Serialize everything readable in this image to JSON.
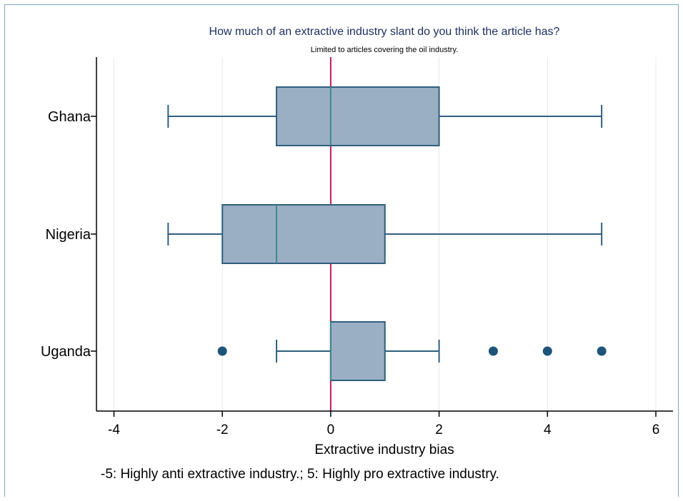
{
  "chart_data": {
    "type": "boxplot",
    "orientation": "horizontal",
    "title": "How much of an extractive industry slant do you think the article has?",
    "subtitle": "Limited to articles covering the oil industry.",
    "xlabel": "Extractive industry bias",
    "note": "-5: Highly anti extractive industry.; 5: Highly pro extractive industry.",
    "xlim": [
      -4.3,
      6.3
    ],
    "xticks": [
      -4,
      -2,
      0,
      2,
      4,
      6
    ],
    "xtick_labels": [
      "-4",
      "-2",
      "0",
      "2",
      "4",
      "6"
    ],
    "reference_line": 0,
    "grid": true,
    "colors": {
      "box_fill": "#9aaec4",
      "box_stroke": "#2f5f7e",
      "whisker": "#2f5f7e",
      "outlier": "#1d5479",
      "median": "#3d8a8c",
      "reference_line": "#c2185b",
      "grid": "#e8e8e8",
      "axis": "#000000",
      "title": "#1e2f63"
    },
    "categories": [
      "Ghana",
      "Nigeria",
      "Uganda"
    ],
    "boxes": [
      {
        "name": "Ghana",
        "whisker_low": -3,
        "q1": -1,
        "median": 0,
        "q3": 2,
        "whisker_high": 5,
        "outliers": []
      },
      {
        "name": "Nigeria",
        "whisker_low": -3,
        "q1": -2,
        "median": -1,
        "q3": 1,
        "whisker_high": 5,
        "outliers": []
      },
      {
        "name": "Uganda",
        "whisker_low": -1,
        "q1": 0,
        "median": 0,
        "q3": 1,
        "whisker_high": 2,
        "outliers": [
          -2,
          3,
          4,
          5
        ]
      }
    ]
  }
}
